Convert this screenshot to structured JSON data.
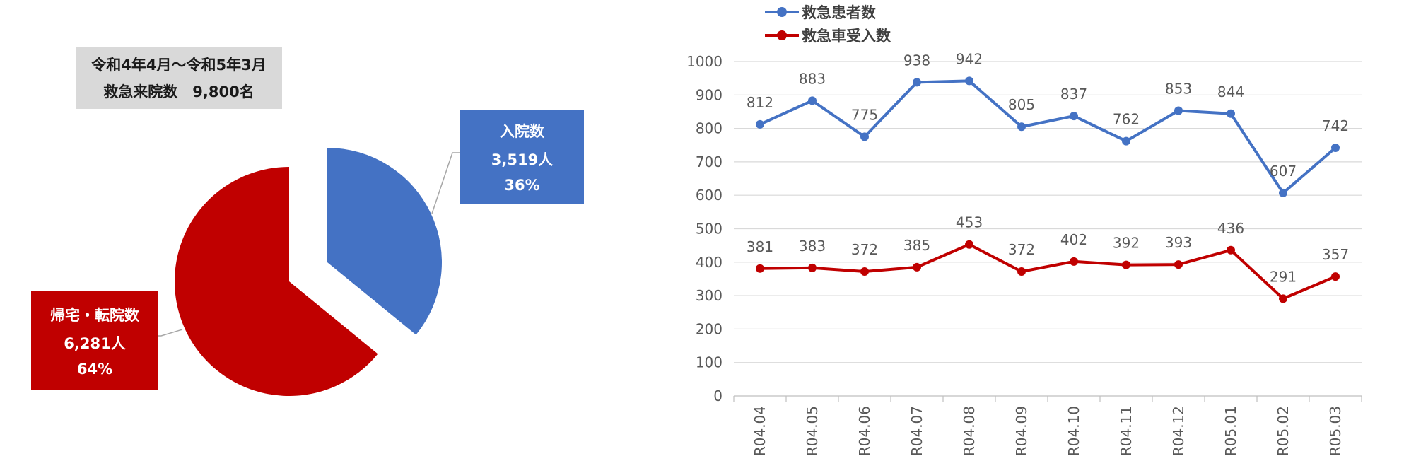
{
  "summary": {
    "period": "令和4年4月～令和5年3月",
    "total": "救急来院数　9,800名"
  },
  "callouts": {
    "admitted": {
      "title": "入院数",
      "count": "3,519人",
      "percent": "36%"
    },
    "discharged": {
      "title": "帰宅・転院数",
      "count": "6,281人",
      "percent": "64%"
    }
  },
  "colors": {
    "blue": "#4472c4",
    "red": "#c00000",
    "grid": "#d9d9d9",
    "summary_bg": "#d9d9d9"
  },
  "legend": {
    "patients": "救急患者数",
    "ambulance": "救急車受入数"
  },
  "chart_data": [
    {
      "type": "pie",
      "categories": [
        "入院数",
        "帰宅・転院数"
      ],
      "values": [
        3519,
        6281
      ],
      "percent": [
        36,
        64
      ],
      "exploded": "入院数"
    },
    {
      "type": "line",
      "categories": [
        "R04.04",
        "R04.05",
        "R04.06",
        "R04.07",
        "R04.08",
        "R04.09",
        "R04.10",
        "R04.11",
        "R04.12",
        "R05.01",
        "R05.02",
        "R05.03"
      ],
      "series": [
        {
          "name": "救急患者数",
          "values": [
            812,
            883,
            775,
            938,
            942,
            805,
            837,
            762,
            853,
            844,
            607,
            742
          ]
        },
        {
          "name": "救急車受入数",
          "values": [
            381,
            383,
            372,
            385,
            453,
            372,
            402,
            392,
            393,
            436,
            291,
            357
          ]
        }
      ],
      "ylim": [
        0,
        1000
      ],
      "yticks": [
        0,
        100,
        200,
        300,
        400,
        500,
        600,
        700,
        800,
        900,
        1000
      ],
      "grid": true,
      "legend_position": "top-left",
      "data_labels": true
    }
  ]
}
